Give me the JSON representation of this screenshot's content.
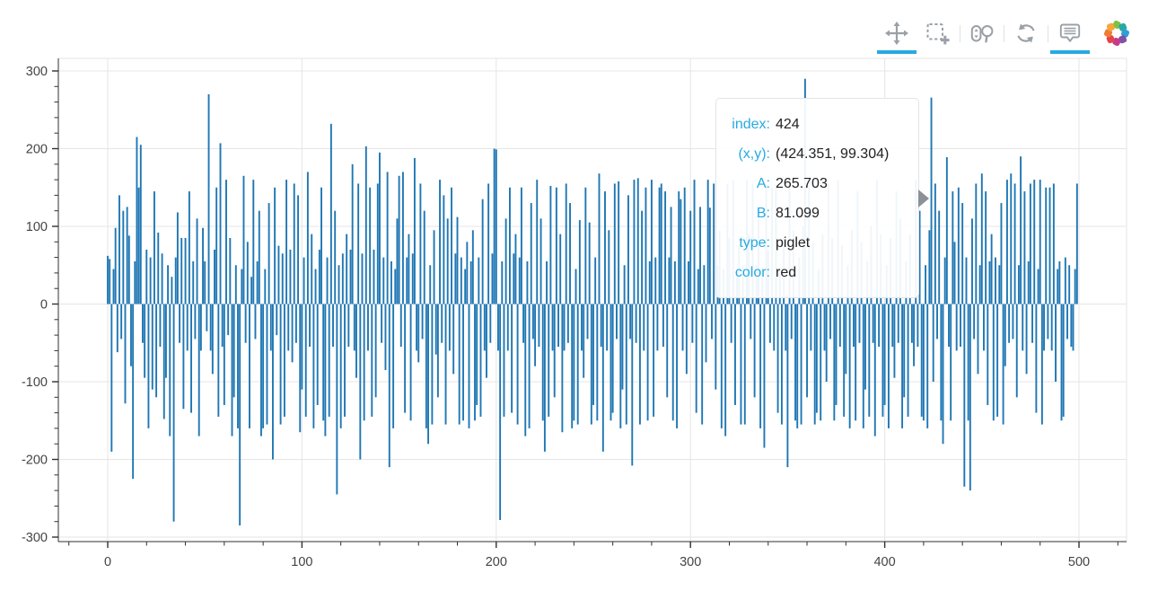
{
  "chart_data": {
    "type": "bar",
    "title": "",
    "xlabel": "",
    "ylabel": "",
    "x_start": 0,
    "x_step": 1,
    "n_bars": 500,
    "xlim": [
      -25.4,
      524.5
    ],
    "ylim": [
      -306,
      316
    ],
    "x_ticks": [
      0,
      100,
      200,
      300,
      400,
      500
    ],
    "y_ticks": [
      300,
      200,
      100,
      0,
      -100,
      -200,
      -300
    ],
    "x_minor_step": 20,
    "y_minor_step": 20,
    "grid": true,
    "legend": "none",
    "hovered_point": {
      "index": 424,
      "x": 424.351,
      "y": 99.304,
      "A": 265.703,
      "B": 81.099,
      "type": "piglet",
      "color": "red"
    },
    "values": [
      62,
      58,
      -190,
      45,
      98,
      -62,
      140,
      -45,
      120,
      -128,
      125,
      88,
      -80,
      -225,
      55,
      215,
      150,
      205,
      -50,
      -95,
      70,
      -160,
      60,
      -110,
      145,
      -120,
      92,
      -55,
      65,
      -148,
      -95,
      50,
      -170,
      35,
      -280,
      60,
      118,
      -50,
      85,
      -135,
      85,
      -60,
      145,
      -140,
      55,
      -45,
      110,
      -170,
      -60,
      98,
      55,
      -35,
      270,
      -60,
      -90,
      70,
      150,
      -145,
      207,
      -55,
      -130,
      160,
      -40,
      85,
      -170,
      -120,
      50,
      -160,
      -285,
      45,
      165,
      -50,
      80,
      -160,
      35,
      160,
      -45,
      55,
      120,
      -170,
      -160,
      45,
      -155,
      130,
      -60,
      -200,
      150,
      -40,
      75,
      -155,
      65,
      -145,
      160,
      -60,
      70,
      -75,
      155,
      -50,
      140,
      -165,
      -110,
      60,
      -145,
      170,
      -55,
      90,
      -160,
      45,
      -130,
      70,
      150,
      -150,
      -170,
      60,
      -145,
      232,
      -55,
      120,
      -245,
      50,
      -160,
      65,
      -145,
      90,
      -55,
      70,
      180,
      -60,
      -95,
      155,
      -200,
      65,
      -150,
      203,
      -60,
      150,
      -145,
      70,
      -120,
      155,
      195,
      -50,
      60,
      -85,
      170,
      -210,
      55,
      -160,
      45,
      110,
      165,
      -55,
      170,
      -140,
      60,
      90,
      -150,
      65,
      188,
      -60,
      -75,
      155,
      -45,
      120,
      -160,
      -180,
      50,
      -155,
      95,
      -65,
      -120,
      160,
      -50,
      140,
      -155,
      110,
      -60,
      150,
      -90,
      65,
      112,
      -155,
      60,
      -150,
      45,
      80,
      -160,
      55,
      95,
      -150,
      -130,
      60,
      -145,
      135,
      -60,
      -95,
      155,
      -50,
      65,
      200,
      199,
      -60,
      -278,
      55,
      -145,
      110,
      -60,
      150,
      -140,
      65,
      90,
      -155,
      60,
      150,
      -50,
      -170,
      55,
      -160,
      130,
      -45,
      -80,
      160,
      -55,
      110,
      -150,
      -190,
      55,
      -145,
      152,
      -60,
      -120,
      150,
      -55,
      90,
      -165,
      -60,
      155,
      -50,
      130,
      -160,
      -150,
      45,
      -155,
      108,
      -60,
      -95,
      150,
      -45,
      105,
      -155,
      -130,
      60,
      -150,
      168,
      -55,
      -190,
      145,
      -60,
      95,
      -150,
      -140,
      155,
      -45,
      158,
      -160,
      -110,
      50,
      -155,
      140,
      -45,
      -208,
      160,
      -50,
      162,
      -155,
      120,
      -60,
      150,
      -150,
      55,
      160,
      -145,
      60,
      -60,
      150,
      155,
      -55,
      145,
      -120,
      60,
      125,
      -150,
      55,
      -160,
      145,
      135,
      -60,
      150,
      -90,
      55,
      120,
      -50,
      160,
      -140,
      45,
      125,
      -155,
      50,
      -75,
      160,
      124,
      -45,
      155,
      -110,
      50,
      95,
      -160,
      45,
      -170,
      155,
      85,
      -50,
      160,
      -130,
      45,
      75,
      -155,
      50,
      -155,
      160,
      90,
      -45,
      155,
      -120,
      50,
      110,
      -160,
      45,
      -185,
      155,
      70,
      -50,
      150,
      -60,
      150,
      -140,
      45,
      -155,
      85,
      -60,
      -210,
      155,
      -45,
      95,
      -150,
      -160,
      60,
      -155,
      100,
      290,
      -120,
      150,
      -60,
      80,
      -155,
      -140,
      45,
      -150,
      90,
      -60,
      -100,
      155,
      -45,
      85,
      -150,
      -130,
      160,
      -55,
      75,
      -145,
      -90,
      50,
      -160,
      95,
      -55,
      -150,
      145,
      -50,
      80,
      -160,
      -110,
      55,
      -145,
      100,
      -50,
      -170,
      160,
      -55,
      90,
      -145,
      -130,
      50,
      -160,
      85,
      -55,
      -95,
      145,
      -50,
      110,
      -160,
      -120,
      55,
      -145,
      90,
      -50,
      -80,
      160,
      -55,
      120,
      -145,
      -150,
      50,
      -160,
      95,
      265.703,
      -100,
      155,
      -45,
      120,
      -150,
      -180,
      60,
      189,
      -55,
      -150,
      145,
      80,
      -60,
      150,
      -55,
      130,
      -235,
      60,
      -150,
      -240,
      110,
      -45,
      155,
      -90,
      50,
      168,
      -60,
      145,
      -130,
      55,
      90,
      -150,
      60,
      -145,
      50,
      130,
      -155,
      -80,
      160,
      -50,
      168,
      -45,
      155,
      -120,
      50,
      190,
      -60,
      145,
      -90,
      55,
      155,
      -50,
      160,
      -140,
      45,
      160,
      -155,
      -60,
      150,
      -45,
      150,
      -60,
      155,
      -100,
      45,
      55,
      -150,
      -145,
      60,
      -45,
      50,
      -55,
      -60,
      45,
      155
    ]
  },
  "chart_style": {
    "bar_color": "#1f77b4",
    "grid_color": "#e5e5e5",
    "outline_color": "#e5e5e5",
    "axis_color": "#303030",
    "tick_label_color": "#444444",
    "tick_label_size": "14.5px"
  },
  "toolbar": {
    "active_color": "#26aae1",
    "icon_color": "#9aa0a6",
    "tools": [
      {
        "label": "Pan",
        "icon": "pan-icon",
        "active": true
      },
      {
        "label": "Box Zoom",
        "icon": "box-zoom-icon",
        "active": false
      },
      {
        "label": "Wheel Zoom",
        "icon": "wheel-zoom-icon",
        "active": false
      },
      {
        "label": "Reset",
        "icon": "reset-icon",
        "active": false
      },
      {
        "label": "Hover",
        "icon": "hover-icon",
        "active": true
      }
    ],
    "logo": {
      "icon": "bokeh-logo-icon",
      "petal_colors": [
        "#7dc242",
        "#28a8a2",
        "#2f9fd8",
        "#7e52a4",
        "#c23b8f",
        "#e5434b",
        "#ef7c33",
        "#f5a73d"
      ]
    }
  },
  "tooltip": {
    "label_color": "#26aae1",
    "rows": [
      {
        "label": "index:",
        "value": "424"
      },
      {
        "label": "(x,y):",
        "value": "(424.351, 99.304)"
      },
      {
        "label": "A:",
        "value": "265.703"
      },
      {
        "label": "B:",
        "value": "81.099"
      },
      {
        "label": "type:",
        "value": "piglet"
      },
      {
        "label": "color:",
        "value": "red"
      }
    ]
  }
}
